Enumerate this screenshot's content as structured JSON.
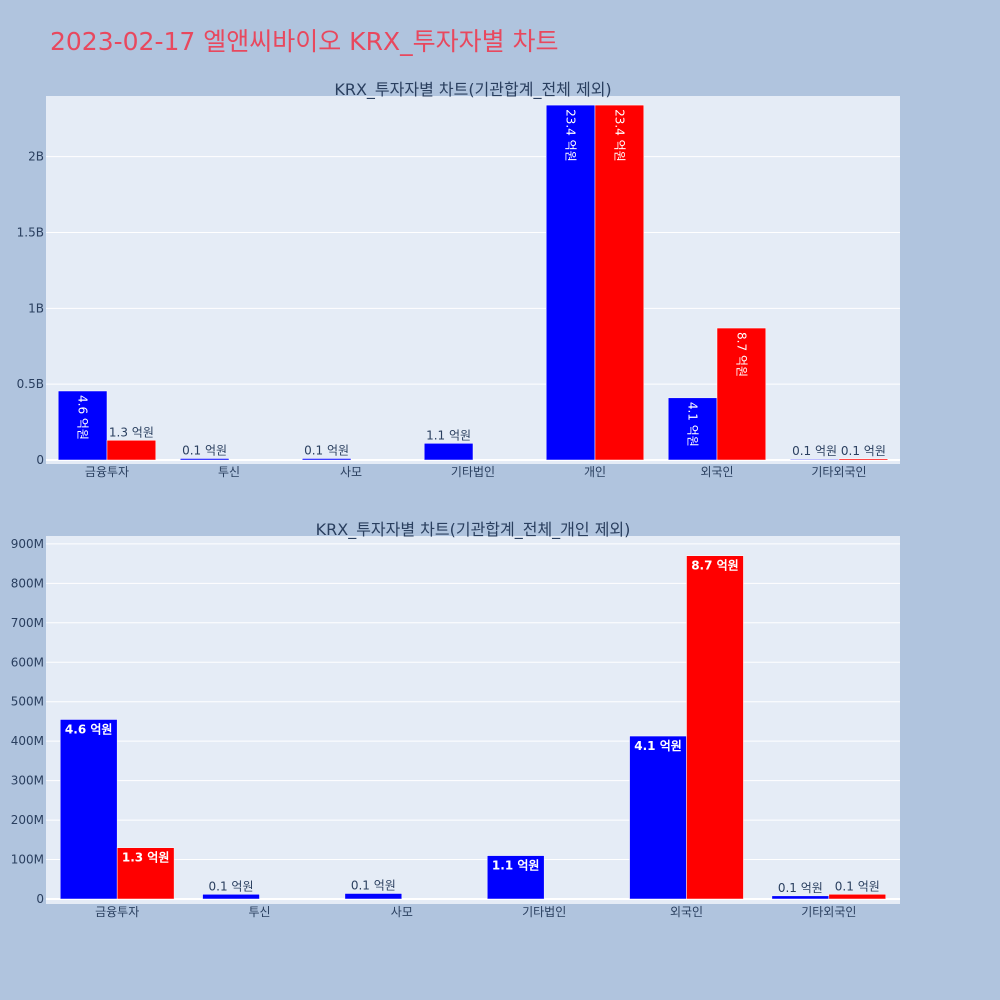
{
  "page": {
    "title": "2023-02-17 엘앤씨바이오 KRX_투자자별 차트",
    "background": "#b0c4de",
    "title_color": "#e8485e"
  },
  "colors": {
    "series_a": "#0000ff",
    "series_b": "#ff0000",
    "plot_bg": "#e5ecf6"
  },
  "chart_data": [
    {
      "type": "bar",
      "title": "KRX_투자자별 차트(기관합계_전체 제외)",
      "categories": [
        "금융투자",
        "투신",
        "사모",
        "기타법인",
        "개인",
        "외국인",
        "기타외국인"
      ],
      "series": [
        {
          "values": [
            455000000,
            10000000,
            10000000,
            110000000,
            2340000000,
            410000000,
            5000000
          ],
          "labels": [
            "4.6 억원",
            "0.1 억원",
            "0.1 억원",
            "1.1 억원",
            "23.4 억원",
            "4.1 억원",
            "0.1 억원"
          ]
        },
        {
          "values": [
            130000000,
            0,
            0,
            0,
            2340000000,
            870000000,
            8000000
          ],
          "labels": [
            "1.3 억원",
            "",
            "",
            "",
            "23.4 억원",
            "8.7 억원",
            "0.1 억원"
          ]
        }
      ],
      "ylim": [
        0,
        2400000000
      ],
      "yticks": [
        0,
        500000000,
        1000000000,
        1500000000,
        2000000000
      ],
      "ytick_labels": [
        "0",
        "0.5B",
        "1B",
        "1.5B",
        "2B"
      ],
      "grid": true
    },
    {
      "type": "bar",
      "title": "KRX_투자자별 차트(기관합계_전체_개인 제외)",
      "categories": [
        "금융투자",
        "투신",
        "사모",
        "기타법인",
        "외국인",
        "기타외국인"
      ],
      "series": [
        {
          "values": [
            455000000,
            12000000,
            14000000,
            110000000,
            413000000,
            8000000
          ],
          "labels": [
            "4.6 억원",
            "0.1 억원",
            "0.1 억원",
            "1.1 억원",
            "4.1 억원",
            "0.1 억원"
          ]
        },
        {
          "values": [
            130000000,
            0,
            0,
            0,
            870000000,
            12000000
          ],
          "labels": [
            "1.3 억원",
            "",
            "",
            "",
            "8.7 억원",
            "0.1 억원"
          ]
        }
      ],
      "ylim": [
        0,
        920000000
      ],
      "yticks": [
        0,
        100000000,
        200000000,
        300000000,
        400000000,
        500000000,
        600000000,
        700000000,
        800000000,
        900000000
      ],
      "ytick_labels": [
        "0",
        "100M",
        "200M",
        "300M",
        "400M",
        "500M",
        "600M",
        "700M",
        "800M",
        "900M"
      ],
      "grid": true
    }
  ]
}
